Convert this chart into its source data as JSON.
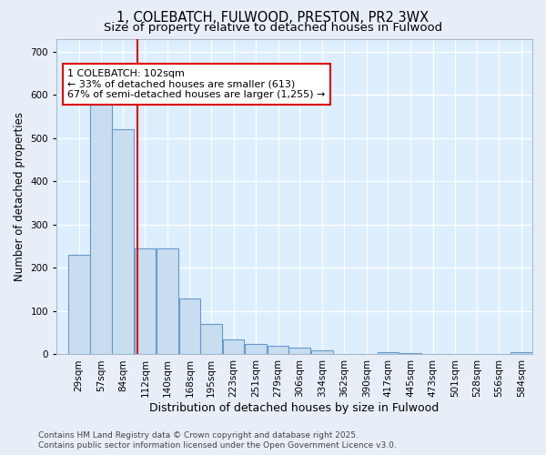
{
  "title": "1, COLEBATCH, FULWOOD, PRESTON, PR2 3WX",
  "subtitle": "Size of property relative to detached houses in Fulwood",
  "xlabel": "Distribution of detached houses by size in Fulwood",
  "ylabel": "Number of detached properties",
  "bar_color": "#c9ddf0",
  "bar_edge_color": "#6699cc",
  "background_color": "#ddeeff",
  "fig_background_color": "#e8eef8",
  "property_size_sqm": 102,
  "vline_color": "#dd0000",
  "annotation_text": "1 COLEBATCH: 102sqm\n← 33% of detached houses are smaller (613)\n67% of semi-detached houses are larger (1,255) →",
  "annotation_box_facecolor": "#ffffff",
  "annotation_box_edgecolor": "#dd0000",
  "categories": [
    "29sqm",
    "57sqm",
    "84sqm",
    "112sqm",
    "140sqm",
    "168sqm",
    "195sqm",
    "223sqm",
    "251sqm",
    "279sqm",
    "306sqm",
    "334sqm",
    "362sqm",
    "390sqm",
    "417sqm",
    "445sqm",
    "473sqm",
    "501sqm",
    "528sqm",
    "556sqm",
    "584sqm"
  ],
  "bin_centers": [
    29,
    57,
    84,
    112,
    140,
    168,
    195,
    223,
    251,
    279,
    306,
    334,
    362,
    390,
    417,
    445,
    473,
    501,
    528,
    556,
    584
  ],
  "bin_width": 28,
  "values": [
    230,
    630,
    520,
    245,
    245,
    130,
    70,
    35,
    25,
    20,
    15,
    10,
    0,
    0,
    5,
    3,
    2,
    1,
    1,
    1,
    5
  ],
  "ylim": [
    0,
    730
  ],
  "yticks": [
    0,
    100,
    200,
    300,
    400,
    500,
    600,
    700
  ],
  "footer_line1": "Contains HM Land Registry data © Crown copyright and database right 2025.",
  "footer_line2": "Contains public sector information licensed under the Open Government Licence v3.0.",
  "title_fontsize": 10.5,
  "subtitle_fontsize": 9.5,
  "xlabel_fontsize": 9,
  "ylabel_fontsize": 8.5,
  "tick_fontsize": 7.5,
  "footer_fontsize": 6.5,
  "annotation_fontsize": 8
}
